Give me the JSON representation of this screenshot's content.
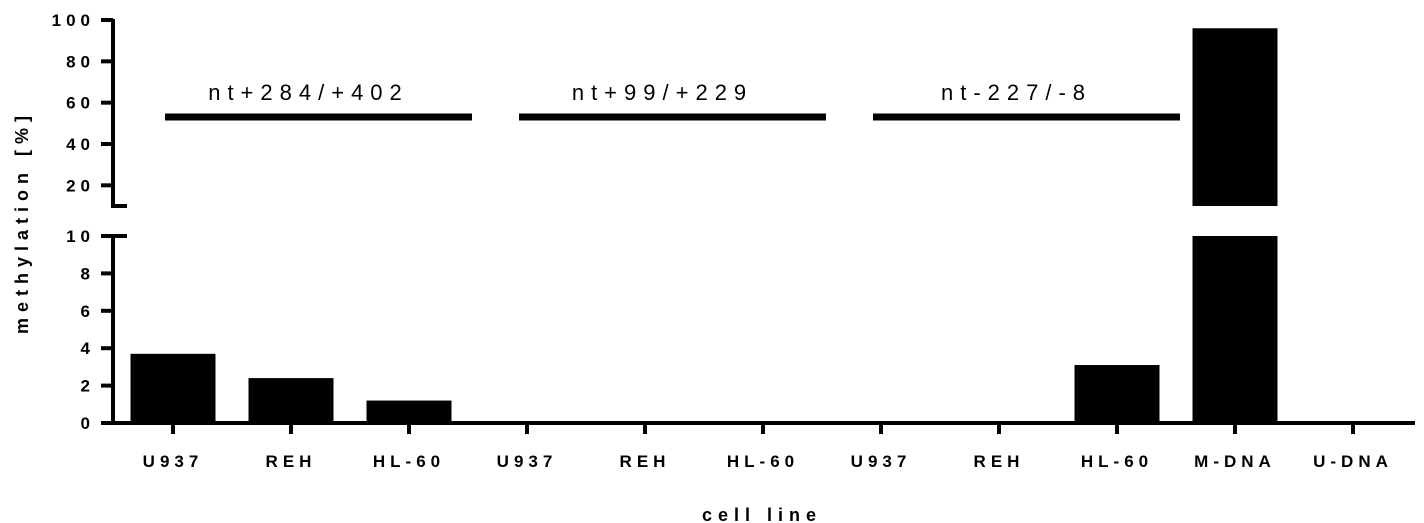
{
  "chart_data": {
    "type": "bar",
    "categories": [
      "U937",
      "REH",
      "HL-60",
      "U937",
      "REH",
      "HL-60",
      "U937",
      "REH",
      "HL-60",
      "M-DNA",
      "U-DNA"
    ],
    "values": [
      3.7,
      2.4,
      1.2,
      0,
      0,
      0,
      0,
      0,
      3.1,
      96,
      0
    ],
    "xlabel": "cell line",
    "ylabel": "methylation [%]",
    "y_broken_axis": {
      "lower_range": [
        0,
        10
      ],
      "lower_ticks": [
        "0",
        "2",
        "4",
        "6",
        "8",
        "10"
      ],
      "upper_range": [
        10,
        100
      ],
      "upper_ticks": [
        "20",
        "40",
        "60",
        "80",
        "100"
      ]
    },
    "groups": [
      {
        "label": "nt+284/+402",
        "from": 0,
        "to": 2
      },
      {
        "label": "nt+99/+229",
        "from": 3,
        "to": 5
      },
      {
        "label": "nt-227/-8",
        "from": 6,
        "to": 8
      }
    ],
    "color": "#000000",
    "grid": false,
    "legend": "none"
  }
}
